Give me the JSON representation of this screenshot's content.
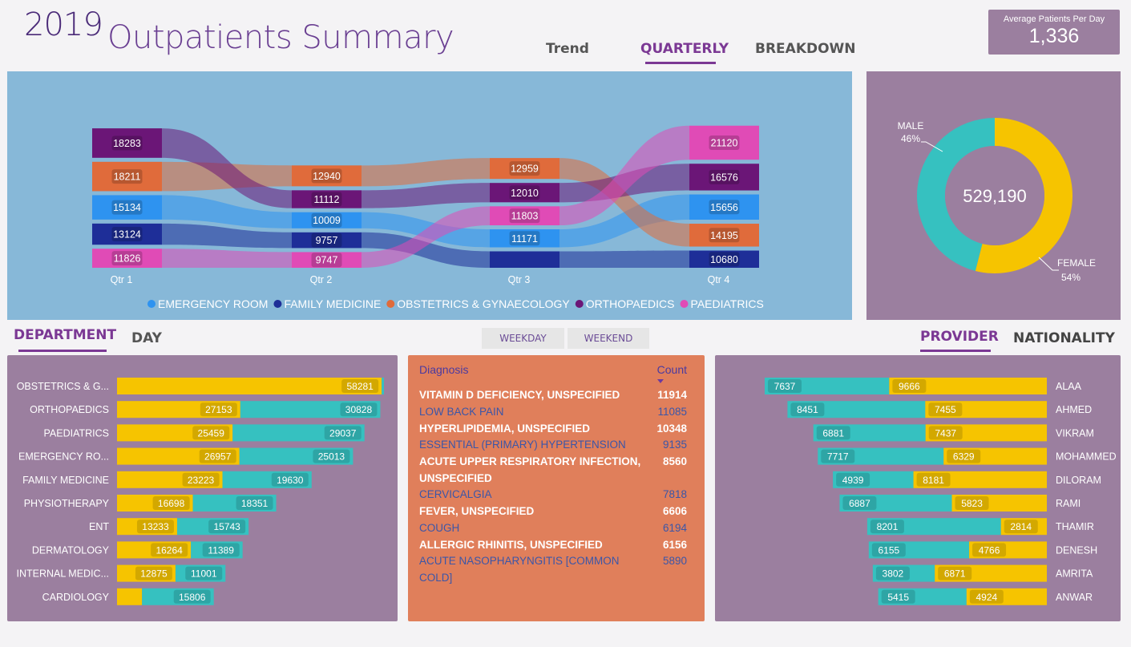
{
  "header": {
    "year": "2019",
    "title": "Outpatients Summary",
    "tabs": [
      {
        "label": "Trend",
        "active": false
      },
      {
        "label": "QUARTERLY",
        "active": true
      },
      {
        "label": "BREAKDOWN",
        "active": false
      }
    ],
    "kpi": {
      "label": "Average Patients Per Day",
      "value": "1,336"
    }
  },
  "colors": {
    "emergency_room": "#2e93f0",
    "family_medicine": "#1e2e98",
    "obstetrics": "#e06b3b",
    "orthopaedics": "#6b1677",
    "paediatrics": "#e04bb6",
    "teal": "#36c1c0",
    "yellow": "#f6c400",
    "purple_panel": "#9b7f9f",
    "accent": "#7b3894"
  },
  "chart_data": [
    {
      "type": "sankey",
      "categories": [
        "Qtr 1",
        "Qtr 2",
        "Qtr 3",
        "Qtr 4"
      ],
      "series": [
        {
          "name": "EMERGENCY ROOM",
          "values": [
            15134,
            10009,
            11171,
            15656
          ]
        },
        {
          "name": "FAMILY MEDICINE",
          "values": [
            13124,
            9757,
            null,
            10680
          ]
        },
        {
          "name": "OBSTETRICS & GYNAECOLOGY",
          "values": [
            18211,
            12940,
            12959,
            14195
          ]
        },
        {
          "name": "ORTHOPAEDICS",
          "values": [
            18283,
            11112,
            12010,
            16576
          ]
        },
        {
          "name": "PAEDIATRICS",
          "values": [
            11826,
            9747,
            11803,
            21120
          ]
        }
      ],
      "legend": "bottom"
    },
    {
      "type": "pie",
      "donut": true,
      "center_label": "529,190",
      "slices": [
        {
          "name": "MALE",
          "value": 46,
          "label": "46%"
        },
        {
          "name": "FEMALE",
          "value": 54,
          "label": "54%"
        }
      ]
    },
    {
      "type": "bar",
      "orientation": "horizontal",
      "stacked": true,
      "categories": [
        "OBSTETRICS & G...",
        "ORTHOPAEDICS",
        "PAEDIATRICS",
        "EMERGENCY RO...",
        "FAMILY MEDICINE",
        "PHYSIOTHERAPY",
        "ENT",
        "DERMATOLOGY",
        "INTERNAL MEDIC...",
        "CARDIOLOGY"
      ],
      "series": [
        {
          "name": "FEMALE",
          "values": [
            58281,
            27153,
            25459,
            26957,
            23223,
            16698,
            13233,
            16264,
            12875,
            5500
          ]
        },
        {
          "name": "MALE",
          "values": [
            500,
            30828,
            29037,
            25013,
            19630,
            18351,
            15743,
            11389,
            11001,
            15806
          ]
        }
      ],
      "labels": [
        [
          "58281",
          ""
        ],
        [
          "27153",
          "30828"
        ],
        [
          "25459",
          "29037"
        ],
        [
          "26957",
          "25013"
        ],
        [
          "23223",
          "19630"
        ],
        [
          "16698",
          "18351"
        ],
        [
          "13233",
          "15743"
        ],
        [
          "16264",
          "11389"
        ],
        [
          "12875",
          "11001"
        ],
        [
          "",
          "15806"
        ]
      ]
    },
    {
      "type": "bar",
      "orientation": "horizontal",
      "stacked": true,
      "diverging": true,
      "categories": [
        "ALAA",
        "AHMED",
        "VIKRAM",
        "MOHAMMED",
        "DILORAM",
        "RAMI",
        "THAMIR",
        "DENESH",
        "AMRITA",
        "ANWAR"
      ],
      "series": [
        {
          "name": "MALE",
          "values": [
            7637,
            8451,
            6881,
            7717,
            4939,
            6887,
            8201,
            6155,
            3802,
            5415
          ]
        },
        {
          "name": "FEMALE",
          "values": [
            9666,
            7455,
            7437,
            6329,
            8181,
            5823,
            2814,
            4766,
            6871,
            4924
          ]
        }
      ]
    }
  ],
  "department": {
    "tabs": [
      {
        "label": "DEPARTMENT",
        "active": true
      },
      {
        "label": "DAY",
        "active": false
      }
    ]
  },
  "day_filter": {
    "weekday": "WEEKDAY",
    "weekend": "WEEKEND"
  },
  "diagnosis": {
    "header_name": "Diagnosis",
    "header_count": "Count",
    "sort_icon": "sort-down-icon",
    "rows": [
      {
        "name": "VITAMIN D DEFICIENCY, UNSPECIFIED",
        "count": "11914"
      },
      {
        "name": "LOW BACK PAIN",
        "count": "11085"
      },
      {
        "name": "HYPERLIPIDEMIA, UNSPECIFIED",
        "count": "10348"
      },
      {
        "name": "ESSENTIAL (PRIMARY) HYPERTENSION",
        "count": "9135"
      },
      {
        "name": "ACUTE UPPER RESPIRATORY INFECTION,",
        "name2": "UNSPECIFIED",
        "count": "8560"
      },
      {
        "name": "CERVICALGIA",
        "count": "7818"
      },
      {
        "name": "FEVER, UNSPECIFIED",
        "count": "6606"
      },
      {
        "name": "COUGH",
        "count": "6194"
      },
      {
        "name": "ALLERGIC RHINITIS, UNSPECIFIED",
        "count": "6156"
      },
      {
        "name": "ACUTE NASOPHARYNGITIS [COMMON",
        "name2": "COLD]",
        "count": "5890"
      }
    ]
  },
  "provider": {
    "tabs": [
      {
        "label": "PROVIDER",
        "active": true
      },
      {
        "label": "NATIONALITY",
        "active": false
      }
    ]
  }
}
